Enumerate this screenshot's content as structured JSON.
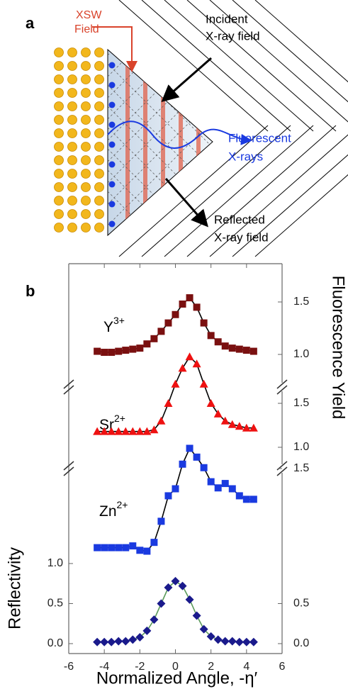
{
  "panel_a": {
    "label": "a",
    "xsw": [
      "XSW",
      "Field"
    ],
    "incident": [
      "Incident",
      "X-ray field"
    ],
    "fluorescent": [
      "Fluorescent",
      "X-rays"
    ],
    "reflected": [
      "Reflected",
      "X-ray field"
    ]
  },
  "panel_b": {
    "label": "b"
  },
  "chart_data": [
    {
      "type": "scatter",
      "marker": "diamond",
      "color": "#1a1a8c",
      "line_color": "#5a9a5a",
      "xlabel": "Normalized Angle, -η′",
      "ylabel": "Reflectivity",
      "xlim": [
        -6,
        6
      ],
      "xticks": [
        -6,
        -4,
        -2,
        0,
        2,
        4,
        6
      ],
      "ylim": [
        -0.1,
        1.5
      ],
      "yticks": [
        {
          "value": 0,
          "label": "0.0"
        },
        0.5,
        {
          "value": 1,
          "label": "1.0"
        }
      ],
      "y2ticks": [
        {
          "value": 0,
          "label": "0.0"
        },
        0.5
      ],
      "x": [
        -4.4,
        -4,
        -3.6,
        -3.2,
        -2.8,
        -2.4,
        -2,
        -1.6,
        -1.2,
        -0.8,
        -0.4,
        0,
        0.4,
        0.8,
        1.2,
        1.6,
        2,
        2.4,
        2.8,
        3.2,
        3.6,
        4,
        4.4
      ],
      "values": [
        0.02,
        0.02,
        0.02,
        0.03,
        0.03,
        0.05,
        0.08,
        0.16,
        0.3,
        0.5,
        0.7,
        0.78,
        0.72,
        0.55,
        0.35,
        0.18,
        0.09,
        0.05,
        0.03,
        0.03,
        0.02,
        0.02,
        0.02
      ]
    },
    {
      "type": "scatter",
      "marker": "square",
      "color": "#1a3ae0",
      "line_color": "#000000",
      "annotation": {
        "base": "Zn",
        "sup": "2+"
      },
      "y2label": "Fluorescence Yield",
      "ylim": [
        0.5,
        1.9
      ],
      "y2ticks": [
        1.5
      ],
      "x": [
        -4.4,
        -4,
        -3.6,
        -3.2,
        -2.8,
        -2.4,
        -2,
        -1.6,
        -1.2,
        -0.8,
        -0.4,
        0,
        0.4,
        0.8,
        1.2,
        1.6,
        2,
        2.4,
        2.8,
        3.2,
        3.6,
        4,
        4.4
      ],
      "values": [
        0.6,
        0.6,
        0.6,
        0.6,
        0.6,
        0.62,
        0.57,
        0.56,
        0.66,
        0.9,
        1.19,
        1.27,
        1.55,
        1.73,
        1.63,
        1.51,
        1.35,
        1.28,
        1.33,
        1.27,
        1.19,
        1.15,
        1.15
      ]
    },
    {
      "type": "scatter",
      "marker": "triangle",
      "color": "#ee1111",
      "line_color": "#000000",
      "annotation": {
        "base": "Sr",
        "sup": "2+"
      },
      "ylim": [
        0.8,
        2.15
      ],
      "y2ticks": [
        {
          "value": 1,
          "label": "1.0"
        },
        1.5
      ],
      "x": [
        -4.4,
        -4,
        -3.6,
        -3.2,
        -2.8,
        -2.4,
        -2,
        -1.6,
        -1.2,
        -0.8,
        -0.4,
        0,
        0.4,
        0.8,
        1.2,
        1.6,
        2,
        2.4,
        2.8,
        3.2,
        3.6,
        4,
        4.4
      ],
      "values": [
        1.18,
        1.18,
        1.18,
        1.18,
        1.18,
        1.18,
        1.18,
        1.18,
        1.2,
        1.3,
        1.5,
        1.72,
        1.9,
        2.03,
        1.95,
        1.72,
        1.5,
        1.38,
        1.3,
        1.26,
        1.24,
        1.22,
        1.22
      ]
    },
    {
      "type": "scatter",
      "marker": "square",
      "color": "#7a1010",
      "line_color": "#000000",
      "annotation": {
        "base": "Y",
        "sup": "3+"
      },
      "ylim": [
        0.9,
        1.7
      ],
      "y2ticks": [
        {
          "value": 1,
          "label": "1.0"
        },
        1.5
      ],
      "x": [
        -4.4,
        -4,
        -3.6,
        -3.2,
        -2.8,
        -2.4,
        -2,
        -1.6,
        -1.2,
        -0.8,
        -0.4,
        0,
        0.4,
        0.8,
        1.2,
        1.6,
        2,
        2.4,
        2.8,
        3.2,
        3.6,
        4,
        4.4
      ],
      "values": [
        1.03,
        1.02,
        1.02,
        1.03,
        1.04,
        1.05,
        1.06,
        1.1,
        1.15,
        1.22,
        1.3,
        1.38,
        1.48,
        1.54,
        1.45,
        1.3,
        1.18,
        1.12,
        1.08,
        1.06,
        1.05,
        1.04,
        1.03
      ]
    }
  ]
}
